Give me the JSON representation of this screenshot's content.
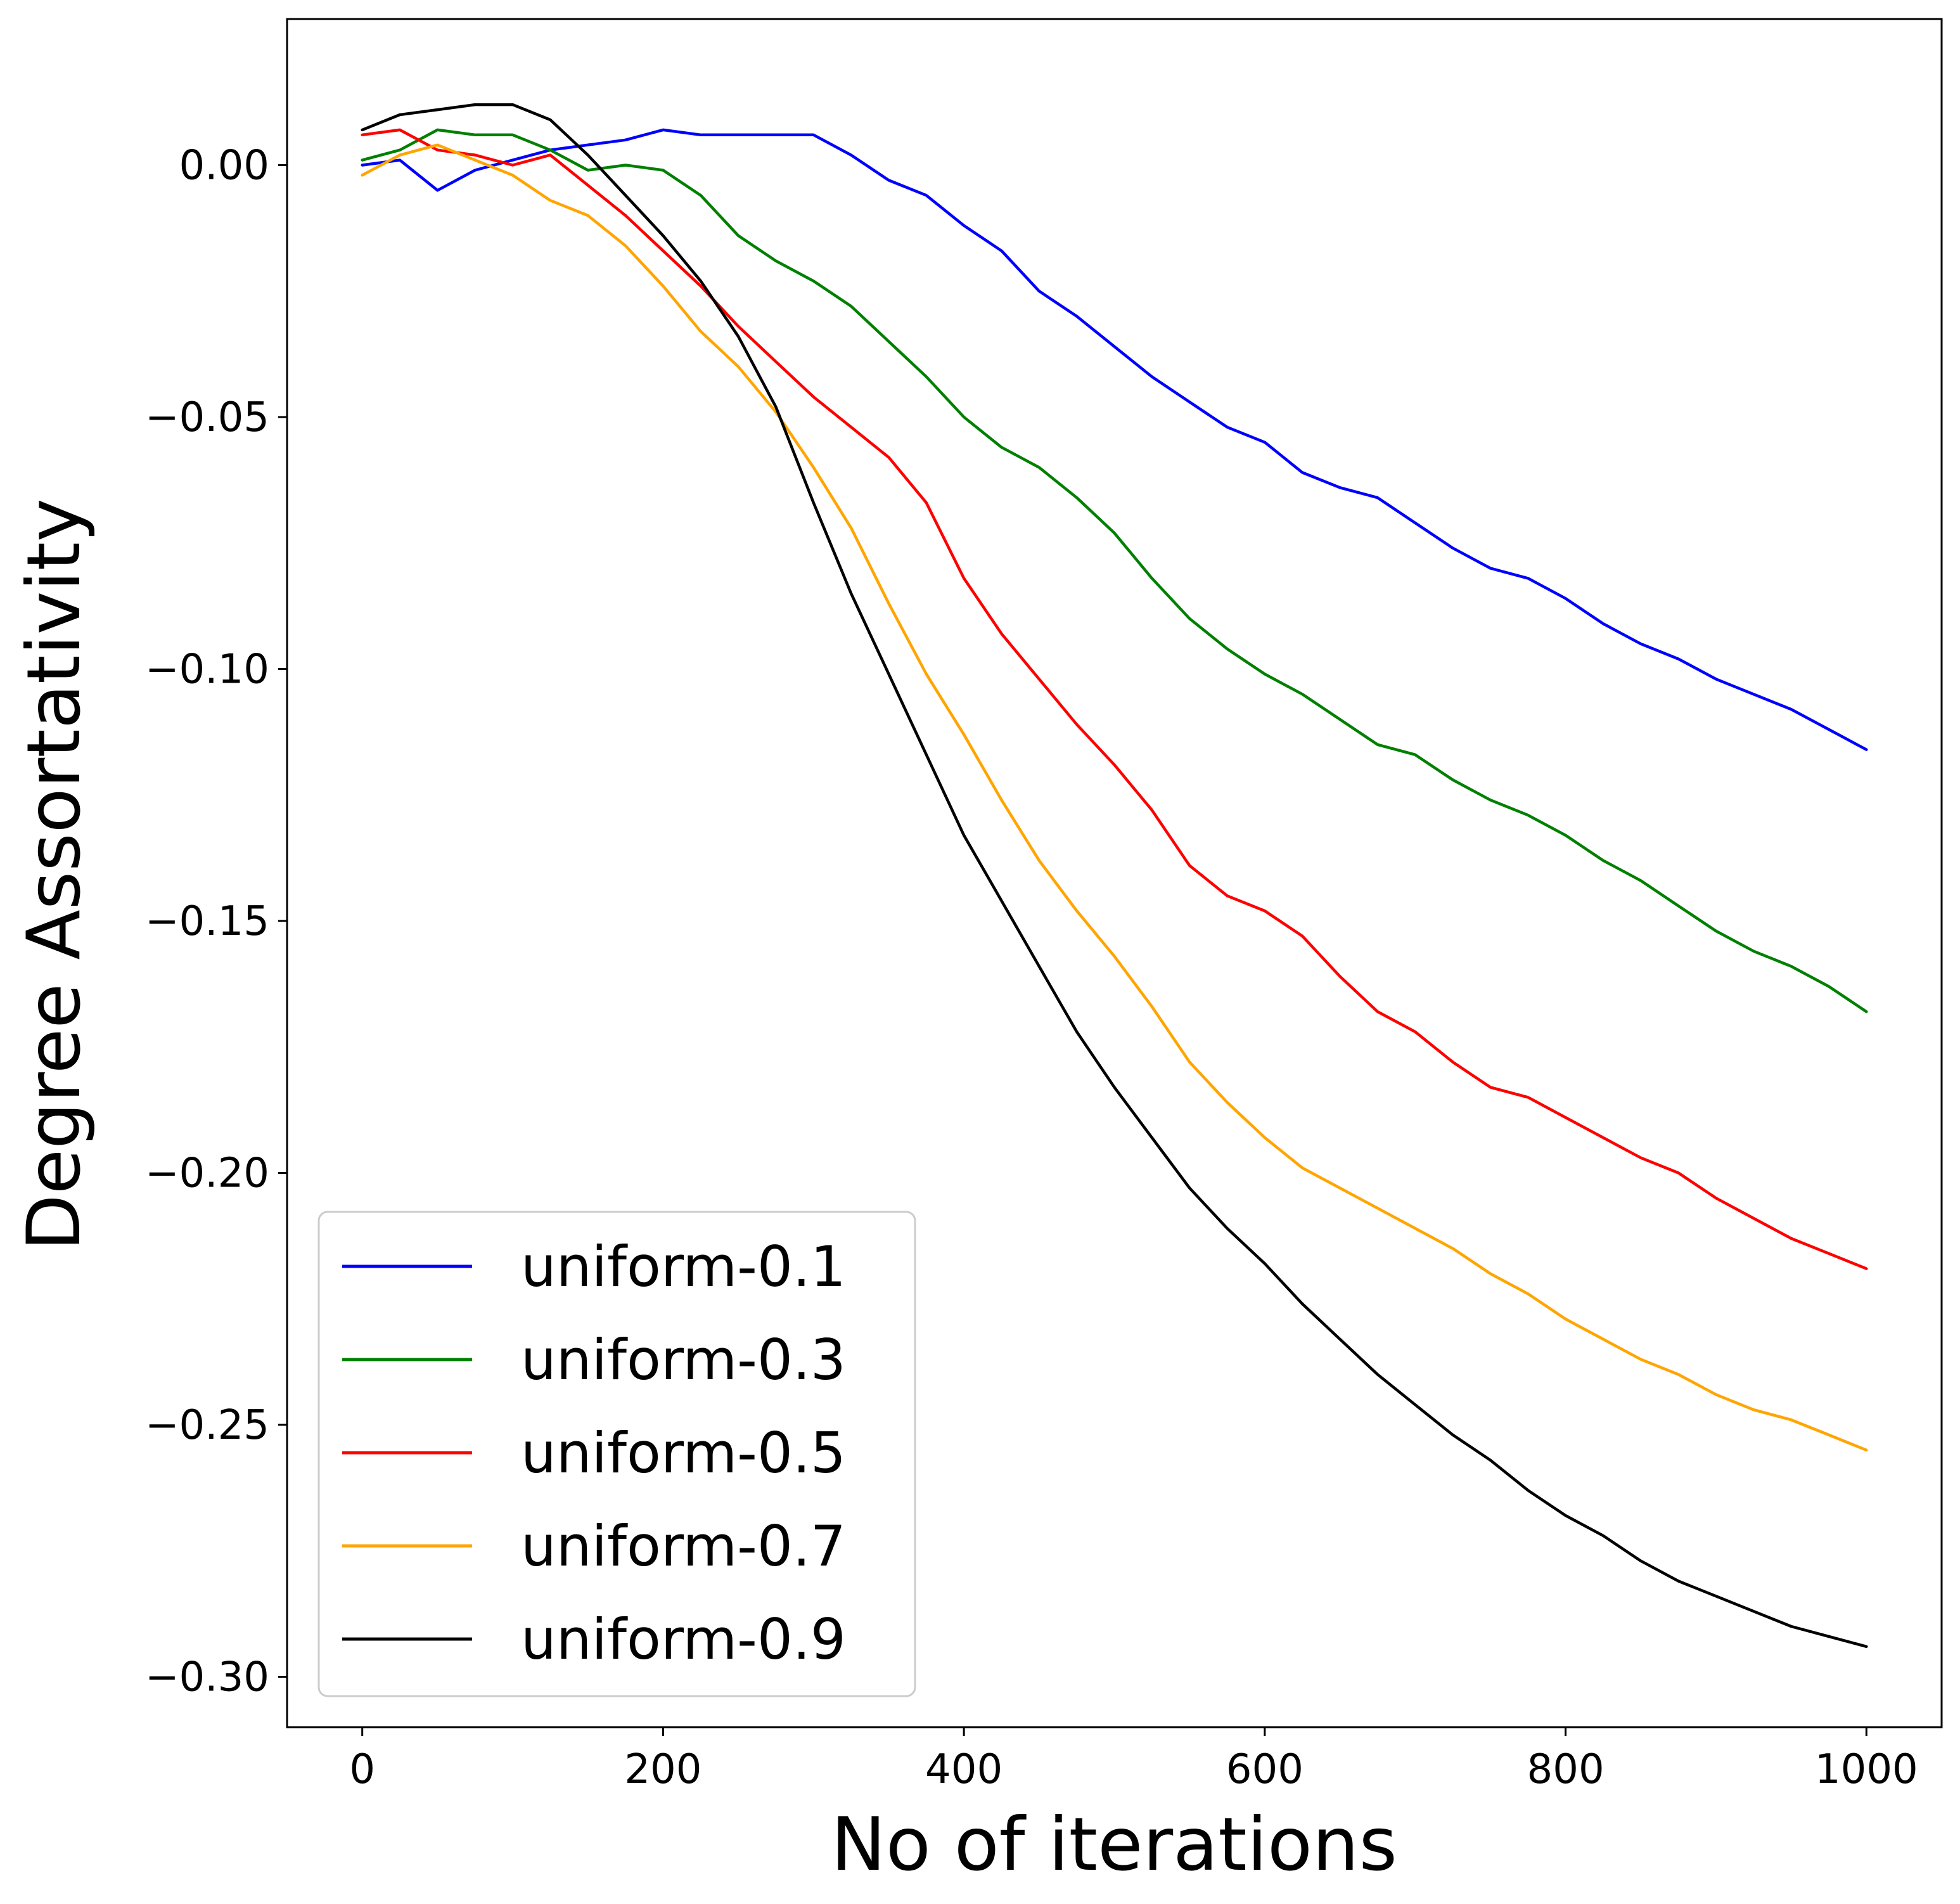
{
  "chart_data": {
    "type": "line",
    "title": "",
    "xlabel": "No of iterations",
    "ylabel": "Degree Assortativity",
    "xlim": [
      -50,
      1050
    ],
    "ylim": [
      -0.31,
      0.029
    ],
    "x_ticks": [
      0,
      200,
      400,
      600,
      800,
      1000
    ],
    "x_tick_labels": [
      "0",
      "200",
      "400",
      "600",
      "800",
      "1000"
    ],
    "y_ticks": [
      0.0,
      -0.05,
      -0.1,
      -0.15,
      -0.2,
      -0.25,
      -0.3
    ],
    "y_tick_labels": [
      "0.00",
      "−0.05",
      "−0.10",
      "−0.15",
      "−0.20",
      "−0.25",
      "−0.30"
    ],
    "grid": false,
    "legend_position": "lower-left",
    "series": [
      {
        "name": "uniform-0.1",
        "color": "#0000ff",
        "x": [
          0,
          25,
          50,
          75,
          100,
          125,
          150,
          175,
          200,
          225,
          250,
          275,
          300,
          325,
          350,
          375,
          400,
          425,
          450,
          475,
          500,
          525,
          550,
          575,
          600,
          625,
          650,
          675,
          700,
          725,
          750,
          775,
          800,
          825,
          850,
          875,
          900,
          925,
          950,
          975,
          1000
        ],
        "y": [
          0.0,
          0.001,
          -0.005,
          -0.001,
          0.001,
          0.003,
          0.004,
          0.005,
          0.007,
          0.006,
          0.006,
          0.006,
          0.006,
          0.002,
          -0.003,
          -0.006,
          -0.012,
          -0.017,
          -0.025,
          -0.03,
          -0.036,
          -0.042,
          -0.047,
          -0.052,
          -0.055,
          -0.061,
          -0.064,
          -0.066,
          -0.071,
          -0.076,
          -0.08,
          -0.082,
          -0.086,
          -0.091,
          -0.095,
          -0.098,
          -0.102,
          -0.105,
          -0.108,
          -0.112,
          -0.116
        ]
      },
      {
        "name": "uniform-0.3",
        "color": "#008000",
        "x": [
          0,
          25,
          50,
          75,
          100,
          125,
          150,
          175,
          200,
          225,
          250,
          275,
          300,
          325,
          350,
          375,
          400,
          425,
          450,
          475,
          500,
          525,
          550,
          575,
          600,
          625,
          650,
          675,
          700,
          725,
          750,
          775,
          800,
          825,
          850,
          875,
          900,
          925,
          950,
          975,
          1000
        ],
        "y": [
          0.001,
          0.003,
          0.007,
          0.006,
          0.006,
          0.003,
          -0.001,
          0.0,
          -0.001,
          -0.006,
          -0.014,
          -0.019,
          -0.023,
          -0.028,
          -0.035,
          -0.042,
          -0.05,
          -0.056,
          -0.06,
          -0.066,
          -0.073,
          -0.082,
          -0.09,
          -0.096,
          -0.101,
          -0.105,
          -0.11,
          -0.115,
          -0.117,
          -0.122,
          -0.126,
          -0.129,
          -0.133,
          -0.138,
          -0.142,
          -0.147,
          -0.152,
          -0.156,
          -0.159,
          -0.163,
          -0.168
        ]
      },
      {
        "name": "uniform-0.5",
        "color": "#ff0000",
        "x": [
          0,
          25,
          50,
          75,
          100,
          125,
          150,
          175,
          200,
          225,
          250,
          275,
          300,
          325,
          350,
          375,
          400,
          425,
          450,
          475,
          500,
          525,
          550,
          575,
          600,
          625,
          650,
          675,
          700,
          725,
          750,
          775,
          800,
          825,
          850,
          875,
          900,
          925,
          950,
          975,
          1000
        ],
        "y": [
          0.006,
          0.007,
          0.003,
          0.002,
          0.0,
          0.002,
          -0.004,
          -0.01,
          -0.017,
          -0.024,
          -0.032,
          -0.039,
          -0.046,
          -0.052,
          -0.058,
          -0.067,
          -0.082,
          -0.093,
          -0.102,
          -0.111,
          -0.119,
          -0.128,
          -0.139,
          -0.145,
          -0.148,
          -0.153,
          -0.161,
          -0.168,
          -0.172,
          -0.178,
          -0.183,
          -0.185,
          -0.189,
          -0.193,
          -0.197,
          -0.2,
          -0.205,
          -0.209,
          -0.213,
          -0.216,
          -0.219
        ]
      },
      {
        "name": "uniform-0.7",
        "color": "#ffa500",
        "x": [
          0,
          25,
          50,
          75,
          100,
          125,
          150,
          175,
          200,
          225,
          250,
          275,
          300,
          325,
          350,
          375,
          400,
          425,
          450,
          475,
          500,
          525,
          550,
          575,
          600,
          625,
          650,
          675,
          700,
          725,
          750,
          775,
          800,
          825,
          850,
          875,
          900,
          925,
          950,
          975,
          1000
        ],
        "y": [
          -0.002,
          0.002,
          0.004,
          0.001,
          -0.002,
          -0.007,
          -0.01,
          -0.016,
          -0.024,
          -0.033,
          -0.04,
          -0.049,
          -0.06,
          -0.072,
          -0.087,
          -0.101,
          -0.113,
          -0.126,
          -0.138,
          -0.148,
          -0.157,
          -0.167,
          -0.178,
          -0.186,
          -0.193,
          -0.199,
          -0.203,
          -0.207,
          -0.211,
          -0.215,
          -0.22,
          -0.224,
          -0.229,
          -0.233,
          -0.237,
          -0.24,
          -0.244,
          -0.247,
          -0.249,
          -0.252,
          -0.255
        ]
      },
      {
        "name": "uniform-0.9",
        "color": "#000000",
        "x": [
          0,
          25,
          50,
          75,
          100,
          125,
          150,
          175,
          200,
          225,
          250,
          275,
          300,
          325,
          350,
          375,
          400,
          425,
          450,
          475,
          500,
          525,
          550,
          575,
          600,
          625,
          650,
          675,
          700,
          725,
          750,
          775,
          800,
          825,
          850,
          875,
          900,
          925,
          950,
          975,
          1000
        ],
        "y": [
          0.007,
          0.01,
          0.011,
          0.012,
          0.012,
          0.009,
          0.002,
          -0.006,
          -0.014,
          -0.023,
          -0.034,
          -0.048,
          -0.067,
          -0.085,
          -0.101,
          -0.117,
          -0.133,
          -0.146,
          -0.159,
          -0.172,
          -0.183,
          -0.193,
          -0.203,
          -0.211,
          -0.218,
          -0.226,
          -0.233,
          -0.24,
          -0.246,
          -0.252,
          -0.257,
          -0.263,
          -0.268,
          -0.272,
          -0.277,
          -0.281,
          -0.284,
          -0.287,
          -0.29,
          -0.292,
          -0.294
        ]
      }
    ]
  }
}
